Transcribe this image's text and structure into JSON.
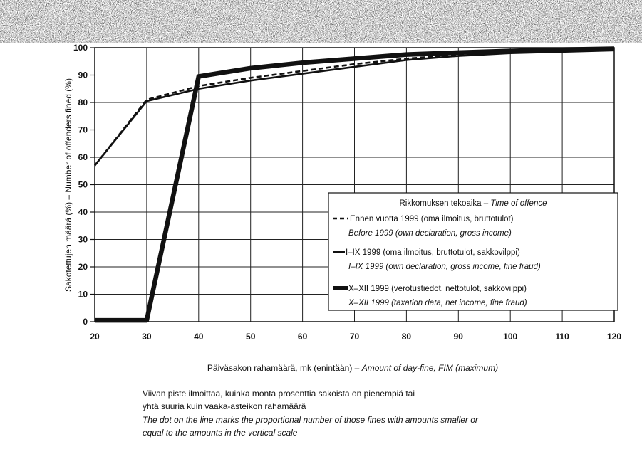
{
  "chart_data": {
    "type": "line",
    "x": [
      20,
      30,
      40,
      50,
      60,
      70,
      80,
      90,
      100,
      110,
      120
    ],
    "xlim": [
      20,
      120
    ],
    "ylim": [
      0,
      100
    ],
    "xticks": [
      "20",
      "30",
      "40",
      "50",
      "60",
      "70",
      "80",
      "90",
      "100",
      "110",
      "120"
    ],
    "yticks": [
      "0",
      "10",
      "20",
      "30",
      "40",
      "50",
      "60",
      "70",
      "80",
      "90",
      "100"
    ],
    "xlabel_fi": "Päiväsakon rahamäärä, mk (enintään) – ",
    "xlabel_en": "Amount of day-fine, FIM (maximum)",
    "ylabel": "Sakotettujen määrä (%) – Number of offenders fined (%)",
    "grid": true,
    "legend_position": "lower-right",
    "legend": {
      "title_fi": "Rikkomuksen tekoaika – ",
      "title_en": "Time of offence",
      "entries": [
        {
          "fi": "Ennen vuotta 1999 (oma ilmoitus, bruttotulot)",
          "en": "Before 1999 (own declaration, gross income)"
        },
        {
          "fi": "I–IX 1999 (oma ilmoitus, bruttotulot, sakkovilppi)",
          "en": "I–IX 1999 (own declaration, gross income, fine fraud)"
        },
        {
          "fi": "X–XII 1999 (verotustiedot, nettotulot, sakkovilppi)",
          "en": "X–XII 1999 (taxation data, net income, fine fraud)"
        }
      ]
    },
    "series": [
      {
        "name": "Ennen vuotta 1999 (oma ilmoitus, bruttotulot)",
        "style": "dashed",
        "color": "#111111",
        "values": [
          57,
          81,
          86,
          89,
          91.5,
          94,
          96,
          97.5,
          98.5,
          99,
          99.5
        ]
      },
      {
        "name": "I–IX 1999 (oma ilmoitus, bruttotulot, sakkovilppi)",
        "style": "medium",
        "color": "#111111",
        "values": [
          57,
          80.5,
          85,
          88,
          90.5,
          93,
          95.5,
          97,
          98,
          98.5,
          99
        ]
      },
      {
        "name": "X–XII 1999 (verotustiedot, nettotulot, sakkovilppi)",
        "style": "thick",
        "color": "#111111",
        "values": [
          0.5,
          0.5,
          89.5,
          92.5,
          94.5,
          96,
          97.5,
          98.2,
          98.8,
          99.3,
          99.6
        ]
      }
    ]
  },
  "notes": {
    "fi_line1": "Viivan piste ilmoittaa, kuinka monta prosenttia sakoista on pienempiä tai",
    "fi_line2": "yhtä suuria kuin vaaka-asteikon rahamäärä",
    "en_line1": "The dot on the line marks the proportional number of those fines with amounts smaller or",
    "en_line2": "equal to the amounts in the vertical scale"
  }
}
